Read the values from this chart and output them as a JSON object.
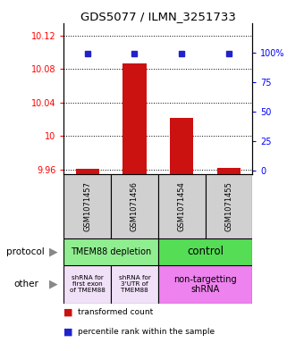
{
  "title": "GDS5077 / ILMN_3251733",
  "samples": [
    "GSM1071457",
    "GSM1071456",
    "GSM1071454",
    "GSM1071455"
  ],
  "red_values": [
    9.961,
    10.087,
    10.022,
    9.962
  ],
  "blue_values": [
    99,
    99,
    99,
    99
  ],
  "ylim_left": [
    9.955,
    10.135
  ],
  "ylim_right": [
    -3,
    125
  ],
  "yticks_left": [
    9.96,
    10.0,
    10.04,
    10.08,
    10.12
  ],
  "yticks_right": [
    0,
    25,
    50,
    75,
    100
  ],
  "ytick_labels_left": [
    "9.96",
    "10",
    "10.04",
    "10.08",
    "10.12"
  ],
  "ytick_labels_right": [
    "0",
    "25",
    "50",
    "75",
    "100%"
  ],
  "protocol_labels": [
    "TMEM88 depletion",
    "control"
  ],
  "protocol_colors": [
    "#90ee90",
    "#55dd55"
  ],
  "other_labels": [
    "shRNA for\nfirst exon\nof TMEM88",
    "shRNA for\n3'UTR of\nTMEM88",
    "non-targetting\nshRNA"
  ],
  "other_colors_light": "#f0e0f8",
  "other_color_pink": "#ee82ee",
  "red_color": "#cc1111",
  "blue_color": "#2222cc",
  "sample_bg": "#d0d0d0",
  "bar_width": 0.5
}
